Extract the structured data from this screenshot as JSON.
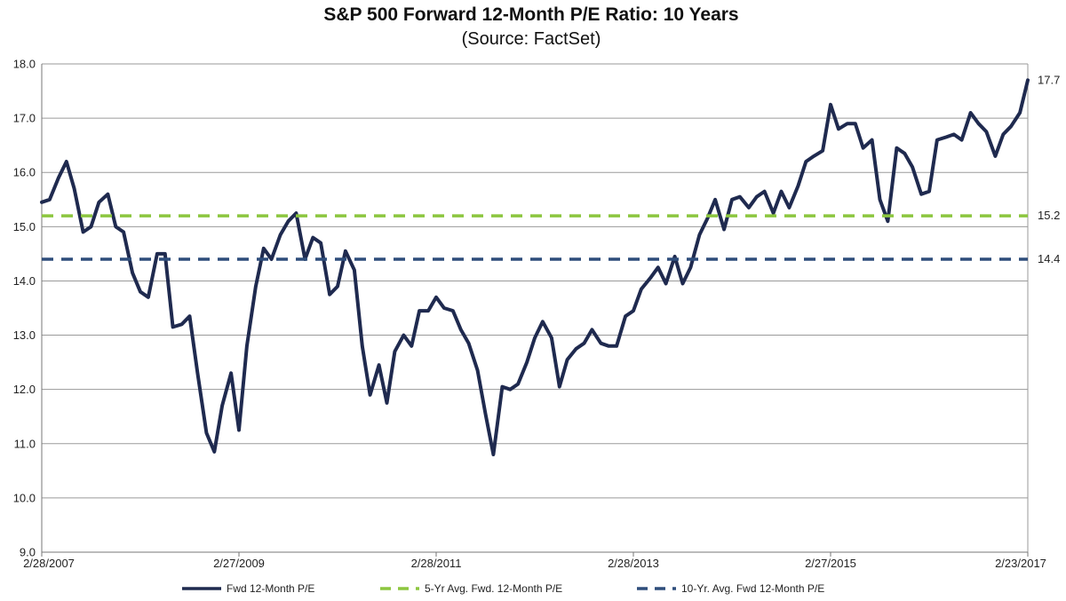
{
  "chart_data": {
    "type": "line",
    "title": "S&P 500 Forward 12-Month P/E Ratio: 10 Years",
    "subtitle": "(Source: FactSet)",
    "xlabel": "",
    "ylabel": "",
    "ylim": [
      9.0,
      18.0
    ],
    "y_ticks": [
      "9.0",
      "10.0",
      "11.0",
      "12.0",
      "13.0",
      "14.0",
      "15.0",
      "16.0",
      "17.0",
      "18.0"
    ],
    "x_tick_labels": [
      "2/28/2007",
      "2/27/2009",
      "2/28/2011",
      "2/28/2013",
      "2/27/2015",
      "2/23/2017"
    ],
    "grid": true,
    "legend_position": "bottom",
    "series": [
      {
        "name": "Fwd 12-Month P/E",
        "style": "solid",
        "color": "#1f2a4f",
        "end_label": "17.7",
        "x_years": [
          0,
          0.08,
          0.17,
          0.25,
          0.33,
          0.42,
          0.5,
          0.58,
          0.67,
          0.75,
          0.83,
          0.92,
          1,
          1.08,
          1.17,
          1.25,
          1.33,
          1.42,
          1.5,
          1.58,
          1.67,
          1.75,
          1.83,
          1.92,
          2,
          2.08,
          2.17,
          2.25,
          2.33,
          2.42,
          2.5,
          2.58,
          2.67,
          2.75,
          2.83,
          2.92,
          3,
          3.08,
          3.17,
          3.25,
          3.33,
          3.42,
          3.5,
          3.58,
          3.67,
          3.75,
          3.83,
          3.92,
          4,
          4.08,
          4.17,
          4.25,
          4.33,
          4.42,
          4.5,
          4.58,
          4.67,
          4.75,
          4.83,
          4.92,
          5,
          5.08,
          5.17,
          5.25,
          5.33,
          5.42,
          5.5,
          5.58,
          5.67,
          5.75,
          5.83,
          5.92,
          6,
          6.08,
          6.17,
          6.25,
          6.33,
          6.42,
          6.5,
          6.58,
          6.67,
          6.75,
          6.83,
          6.92,
          7,
          7.08,
          7.17,
          7.25,
          7.33,
          7.42,
          7.5,
          7.58,
          7.67,
          7.75,
          7.83,
          7.92,
          8,
          8.08,
          8.17,
          8.25,
          8.33,
          8.42,
          8.5,
          8.58,
          8.67,
          8.75,
          8.83,
          8.92,
          9,
          9.08,
          9.17,
          9.25,
          9.33,
          9.42,
          9.5,
          9.58,
          9.67,
          9.75,
          9.83,
          9.92,
          10
        ],
        "values": [
          15.45,
          15.5,
          15.9,
          16.2,
          15.7,
          14.9,
          15.0,
          15.45,
          15.6,
          15.0,
          14.9,
          14.15,
          13.8,
          13.7,
          14.5,
          14.5,
          13.15,
          13.2,
          13.35,
          12.3,
          11.2,
          10.85,
          11.7,
          12.3,
          11.25,
          12.8,
          13.9,
          14.6,
          14.4,
          14.85,
          15.1,
          15.25,
          14.4,
          14.8,
          14.7,
          13.75,
          13.9,
          14.55,
          14.2,
          12.8,
          11.9,
          12.45,
          11.75,
          12.7,
          13.0,
          12.8,
          13.45,
          13.45,
          13.7,
          13.5,
          13.45,
          13.1,
          12.85,
          12.35,
          11.55,
          10.8,
          12.05,
          12.0,
          12.1,
          12.5,
          12.95,
          13.25,
          12.95,
          12.05,
          12.55,
          12.75,
          12.85,
          13.1,
          12.85,
          12.8,
          12.8,
          13.35,
          13.45,
          13.85,
          14.05,
          14.25,
          13.95,
          14.45,
          13.95,
          14.25,
          14.85,
          15.15,
          15.5,
          14.95,
          15.5,
          15.55,
          15.35,
          15.55,
          15.65,
          15.25,
          15.65,
          15.35,
          15.75,
          16.2,
          16.3,
          16.4,
          17.25,
          16.8,
          16.9,
          16.9,
          16.45,
          16.6,
          15.5,
          15.1,
          16.45,
          16.35,
          16.1,
          15.6,
          15.65,
          16.6,
          16.65,
          16.7,
          16.6,
          17.1,
          16.9,
          16.75,
          16.3,
          16.7,
          16.85,
          17.1,
          17.7
        ]
      },
      {
        "name": "5-Yr Avg. Fwd. 12-Month P/E",
        "style": "dashed",
        "color": "#8cc63f",
        "constant": 15.2,
        "end_label": "15.2"
      },
      {
        "name": "10-Yr. Avg. Fwd 12-Month P/E",
        "style": "dashed",
        "color": "#2e4d7b",
        "constant": 14.4,
        "end_label": "14.4"
      }
    ]
  }
}
